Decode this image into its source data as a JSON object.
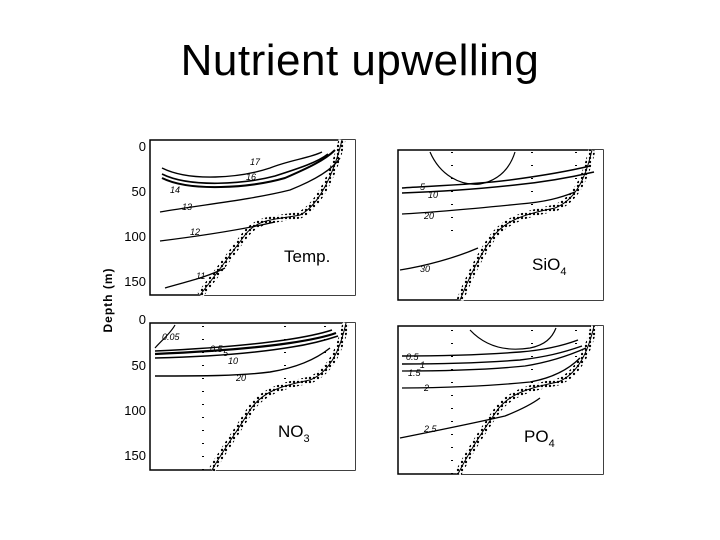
{
  "title": "Nutrient upwelling",
  "figure": {
    "y_axis_label": "Depth (m)",
    "y_ticks_top": [
      "0",
      "50",
      "100",
      "150"
    ],
    "y_ticks_bottom": [
      "0",
      "50",
      "100",
      "150"
    ],
    "panels": {
      "temp": {
        "label": "Temp.",
        "contours": [
          "17",
          "16",
          "14",
          "13",
          "12",
          "11"
        ]
      },
      "sio4": {
        "label_main": "SiO",
        "label_sub": "4",
        "contours": [
          "5",
          "10",
          "20",
          "30"
        ]
      },
      "no3": {
        "label_main": "NO",
        "label_sub": "3",
        "contours": [
          "0.05",
          "0.5",
          "5",
          "10",
          "20"
        ]
      },
      "po4": {
        "label_main": "PO",
        "label_sub": "4",
        "contours": [
          "0.5",
          "1",
          "1.5",
          "2",
          "2.5"
        ]
      }
    }
  }
}
